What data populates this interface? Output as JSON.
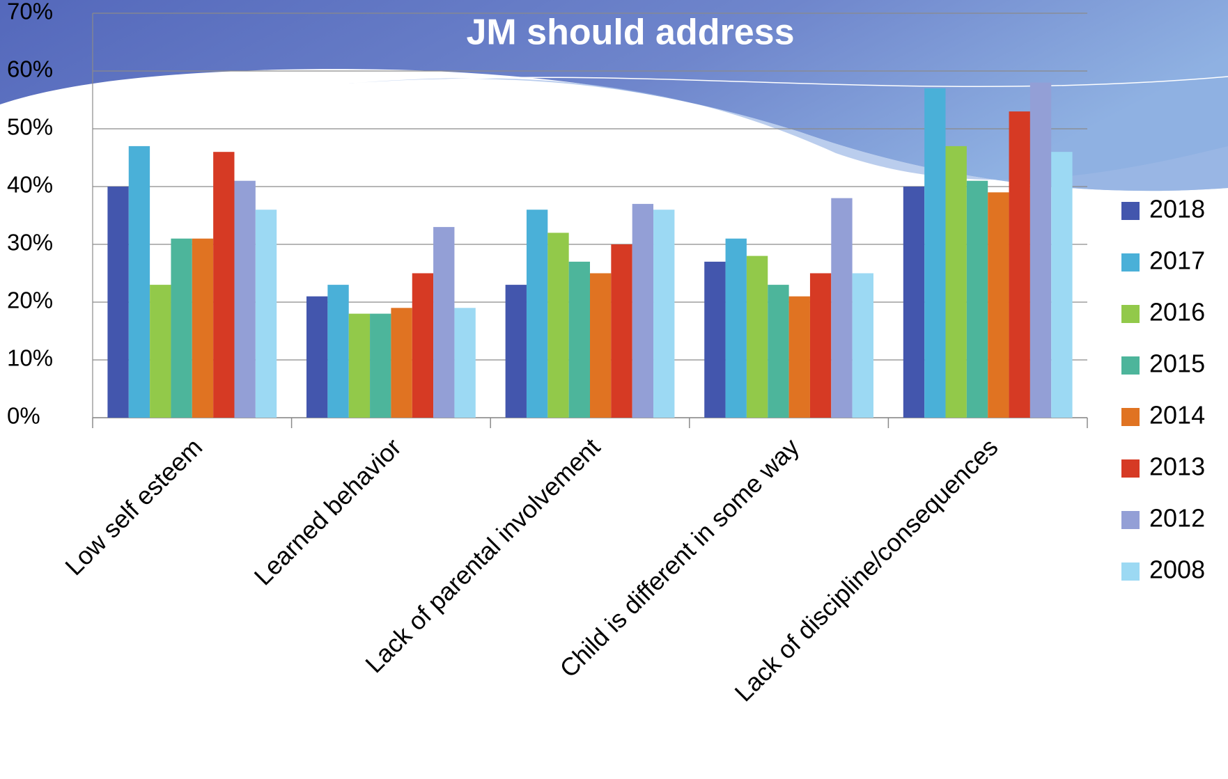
{
  "chart_data": {
    "type": "bar",
    "title": "JM should address",
    "categories": [
      "Low self esteem",
      "Learned behavior",
      "Lack of parental involvement",
      "Child is different in some way",
      "Lack of discipline/consequences"
    ],
    "series": [
      {
        "name": "2018",
        "color": "#4356ad",
        "values": [
          40,
          21,
          23,
          27,
          40
        ]
      },
      {
        "name": "2017",
        "color": "#4ab0d8",
        "values": [
          47,
          23,
          36,
          31,
          57
        ]
      },
      {
        "name": "2016",
        "color": "#92c94a",
        "values": [
          23,
          18,
          32,
          28,
          47
        ]
      },
      {
        "name": "2015",
        "color": "#4db59b",
        "values": [
          31,
          18,
          27,
          23,
          41
        ]
      },
      {
        "name": "2014",
        "color": "#e07322",
        "values": [
          31,
          19,
          25,
          21,
          39
        ]
      },
      {
        "name": "2013",
        "color": "#d63a24",
        "values": [
          46,
          25,
          30,
          25,
          53
        ]
      },
      {
        "name": "2012",
        "color": "#939fd6",
        "values": [
          41,
          33,
          37,
          38,
          58
        ]
      },
      {
        "name": "2008",
        "color": "#9cd9f3",
        "values": [
          36,
          19,
          36,
          25,
          46
        ]
      }
    ],
    "ylim": [
      0,
      70
    ],
    "yticks": [
      {
        "value": 0,
        "label": "0%"
      },
      {
        "value": 10,
        "label": "10%"
      },
      {
        "value": 20,
        "label": "20%"
      },
      {
        "value": 30,
        "label": "30%"
      },
      {
        "value": 40,
        "label": "40%"
      },
      {
        "value": 50,
        "label": "50%"
      },
      {
        "value": 60,
        "label": "60%"
      },
      {
        "value": 70,
        "label": "70%"
      }
    ],
    "grid": true,
    "legend": "right"
  }
}
